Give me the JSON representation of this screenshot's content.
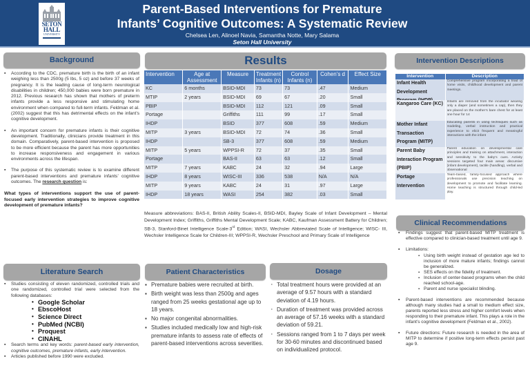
{
  "header": {
    "logo": {
      "line1": "SETON",
      "line2": "HALL",
      "line3": "UNIVERSITY"
    },
    "title_line1": "Parent-Based Interventions for Premature",
    "title_line2": "Infants’ Cognitive Outcomes: A Systematic Review",
    "authors": "Chelsea Len, Alinoel Navia,  Samantha Notte, Mary Salama",
    "affiliation": "Seton Hall University"
  },
  "colors": {
    "header_bg": "#1f4a82",
    "section_head_bg": "#a6a6a6",
    "section_head_text": "#1f4a82",
    "table_header": "#4a78b8",
    "row_odd": "#d3dceb",
    "row_even": "#eaeef5"
  },
  "background": {
    "heading": "Background",
    "bullets": [
      "According to the CDC, premature birth is the birth of an infant weighing less than 2500g (5 lbs, 5 oz) and before 37 weeks of pregnancy. It is the leading cause of long-term neurological disabilities in children; 450,000 babies were born premature in 2012. Previous research has shown that mothers of preterm infants provide a less responsive and stimulating home environment when compared to full-term infants. Feldman et al. (2002) suggest that this has detrimental effects on the infant’s cognitive development.",
      "An important concern for premature infants is their cognitive development. Traditionally, clinicians provide treatment in this domain. Comparatively, parent-based intervention is proposed to be more efficient because the parent has more opportunities to increase responsiveness and engagement in various environments across the lifespan.",
      "The purpose of this systematic review is to examine different parent-based interventions and premature infants’ cognitive outcomes. The"
    ],
    "rq_link": "research question",
    "rq_suffix": "is:",
    "research_question": "What types of interventions support the use of parent-focused early intervention strategies to improve cognitive development of premature infants?"
  },
  "literature": {
    "heading": "Literature Search",
    "intro": "Studies consisting of eleven randomized, controlled trials and one randomized, controlled trial were selected from the following databases:",
    "databases": [
      "Google Scholar",
      "EbscoHost",
      "Science Direct",
      "PubMed (NCBI)",
      "Proquest",
      "CINAHL"
    ],
    "terms_label": "Search terms and key words: ",
    "terms": "parent-based early intervention, cognitive outcomes, premature infants, early intervention.",
    "excluded": " Articles published before 1990 were excluded."
  },
  "results": {
    "heading": "Results",
    "columns": [
      "Intervention",
      "Age at Assessment",
      "Measure",
      "Treatment Infants (n)",
      "Control Infants (n)",
      "Cohen’s d",
      "Effect Size"
    ],
    "rows": [
      [
        "KC",
        "6 months",
        "BSID-MDI",
        "73",
        "73",
        ".47",
        "Medium"
      ],
      [
        "MTIP",
        "2 years",
        "BSID-MDI",
        "69",
        "67",
        ".20",
        "Small"
      ],
      [
        "PBIP",
        "",
        "BSID-MDI",
        "112",
        "121",
        ".09",
        "Small"
      ],
      [
        "Portage",
        "",
        "Griffiths",
        "111",
        "99",
        ".17",
        "Small"
      ],
      [
        "IHDP",
        "",
        "BSID",
        "377",
        "608",
        ".59",
        "Medium"
      ],
      [
        "MITP",
        "3 years",
        "BSID-MDI",
        "72",
        "74",
        ".36",
        "Small"
      ],
      [
        "IHDP",
        "",
        "SB-3",
        "377",
        "608",
        ".59",
        "Medium"
      ],
      [
        "MITP",
        "5 years",
        "WPPSI-R",
        "72",
        "37",
        ".35",
        "Small"
      ],
      [
        "Portage",
        "",
        "BAS-II",
        "63",
        "63",
        ".12",
        "Small"
      ],
      [
        "MITP",
        "7 years",
        "KABC",
        "24",
        "32",
        ".94",
        "Large"
      ],
      [
        "IHDP",
        "8 years",
        "WISC-III",
        "336",
        "538",
        "N/A",
        "N/A"
      ],
      [
        "MITP",
        "9 years",
        "KABC",
        "24",
        "31",
        ".97",
        "Large"
      ],
      [
        "IHDP",
        "18 years",
        "WASI",
        "254",
        "382",
        ".03",
        "Small"
      ]
    ],
    "abbrev_part1": "Measure abbreviations: BAS-II, British Ability Scales-II, BSID-MDI, Bayley Scale of Infant Development – Mental Development Index; Griffiths, Griffiths Mental Development Scale; KABC, Kaufman Assessment Battery for Children; SB-3, Stanford-Binet Intelligence Scale-3",
    "abbrev_sup": "rd",
    "abbrev_part2": " Edition; WASI, Wechsler Abbreviated Scale of Intelligence; WISC- III, Wechsler Intelligence Scale for Children-III; WPPSI-R, Wechsler Preschool and Primary Scale of Intelligence"
  },
  "patient": {
    "heading": "Patient Characteristics",
    "bullets": [
      "Premature babies were recruited at birth.",
      "Birth weight was less than 2500g and ages ranged from 25 weeks gestational age up to 18 years.",
      "No major congenital abnormalities.",
      "Studies included medically low and high-risk premature infants to assess rate of effects of parent-based interventions across severities."
    ]
  },
  "dosage": {
    "heading": "Dosage",
    "bullets": [
      "Total treatment hours were provided at an average of 9.57 hours with a standard deviation of 4.19 hours.",
      "Duration of treatment was provided across an average of 57.16 weeks with a standard deviation of 59.21.",
      "Sessions ranged from 1 to 7 days per week for 30-60 minutes and discontinued based on individualized protocol."
    ]
  },
  "interventions": {
    "heading": "Intervention Descriptions",
    "columns": [
      "Intervention",
      "Description"
    ],
    "rows": [
      {
        "name": "Infant Health Development Program (IHDP)",
        "desc": "Comprehensive program incorporating a triad of home visits, childhood development and parent meetings."
      },
      {
        "name": "Kangaroo Care (KC)",
        "desc": "Infants are removed from the incubator wearing only a diaper (and sometimes a cap), then they are placed on the mother’s bare chest for at least one hour for 14"
      },
      {
        "name": "Mother Infant Transaction Program (MITP)",
        "desc": "Educating parents in using techniques such as modeling, verbal instruction and practical experience to elicit frequent and meaningful interactions with the infant"
      },
      {
        "name": "Parent Baby Interaction Program (PBIP)",
        "desc": "Parent education on developmental care principles and training on attachment, interaction and sensitivity to the baby’s cues. Activity sessions targeted four main areas: discursive (infant development), tactile (handling), verbal and observational"
      },
      {
        "name": "Portage Intervention",
        "desc": "Team-based, family-focused approach where professionals use precision teaching on development to promote and facilitate learning. Home teaching is structured through child-led play."
      }
    ]
  },
  "clinical": {
    "heading": "Clinical Recommendations",
    "finding": "Findings suggest that parent-based MITP treatment is effective compared to clinician-based treatment until age 9.",
    "limitations_label": "Limitations:",
    "limitations": [
      "Using birth weight instead of gestation age led to inclusion of more mature infants; findings cannot be generalized.",
      "SES effects on the fidelity of treatment.",
      "Inclusion of center-based programs when the child reached school-age.",
      "Parent and nurse specialist blinding."
    ],
    "recommendation": "Parent-based interventions are recommended because although many studies had a small to medium effect size, parents reported less stress and higher comfort levels when responding to their premature infant. This plays a role in the infant’s cognitive development (Feldman et al., 2002).",
    "future": "Future directions: Future research is needed in the area of MITP to determine if positive long-term effects persist past age 9."
  }
}
